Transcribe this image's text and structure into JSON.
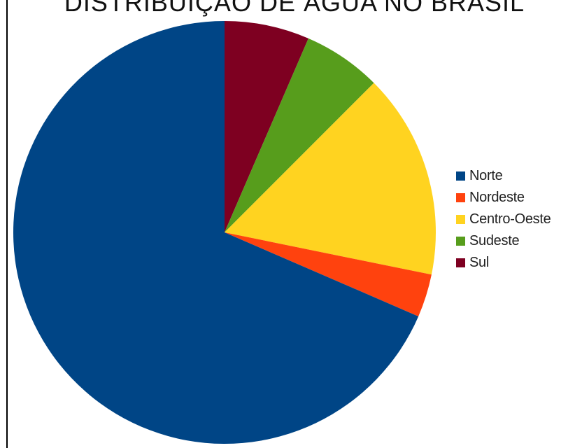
{
  "chart_data": {
    "type": "pie",
    "title": "DISTRIBUIÇÃO DE ÁGUA NO BRASIL",
    "legend_position": "right",
    "categories": [
      "Norte",
      "Nordeste",
      "Centro-Oeste",
      "Sudeste",
      "Sul"
    ],
    "values": [
      68.5,
      3.3,
      15.7,
      6.0,
      6.5
    ],
    "colors": [
      "#004586",
      "#ff420e",
      "#ffd320",
      "#579d1c",
      "#7e0021"
    ]
  }
}
